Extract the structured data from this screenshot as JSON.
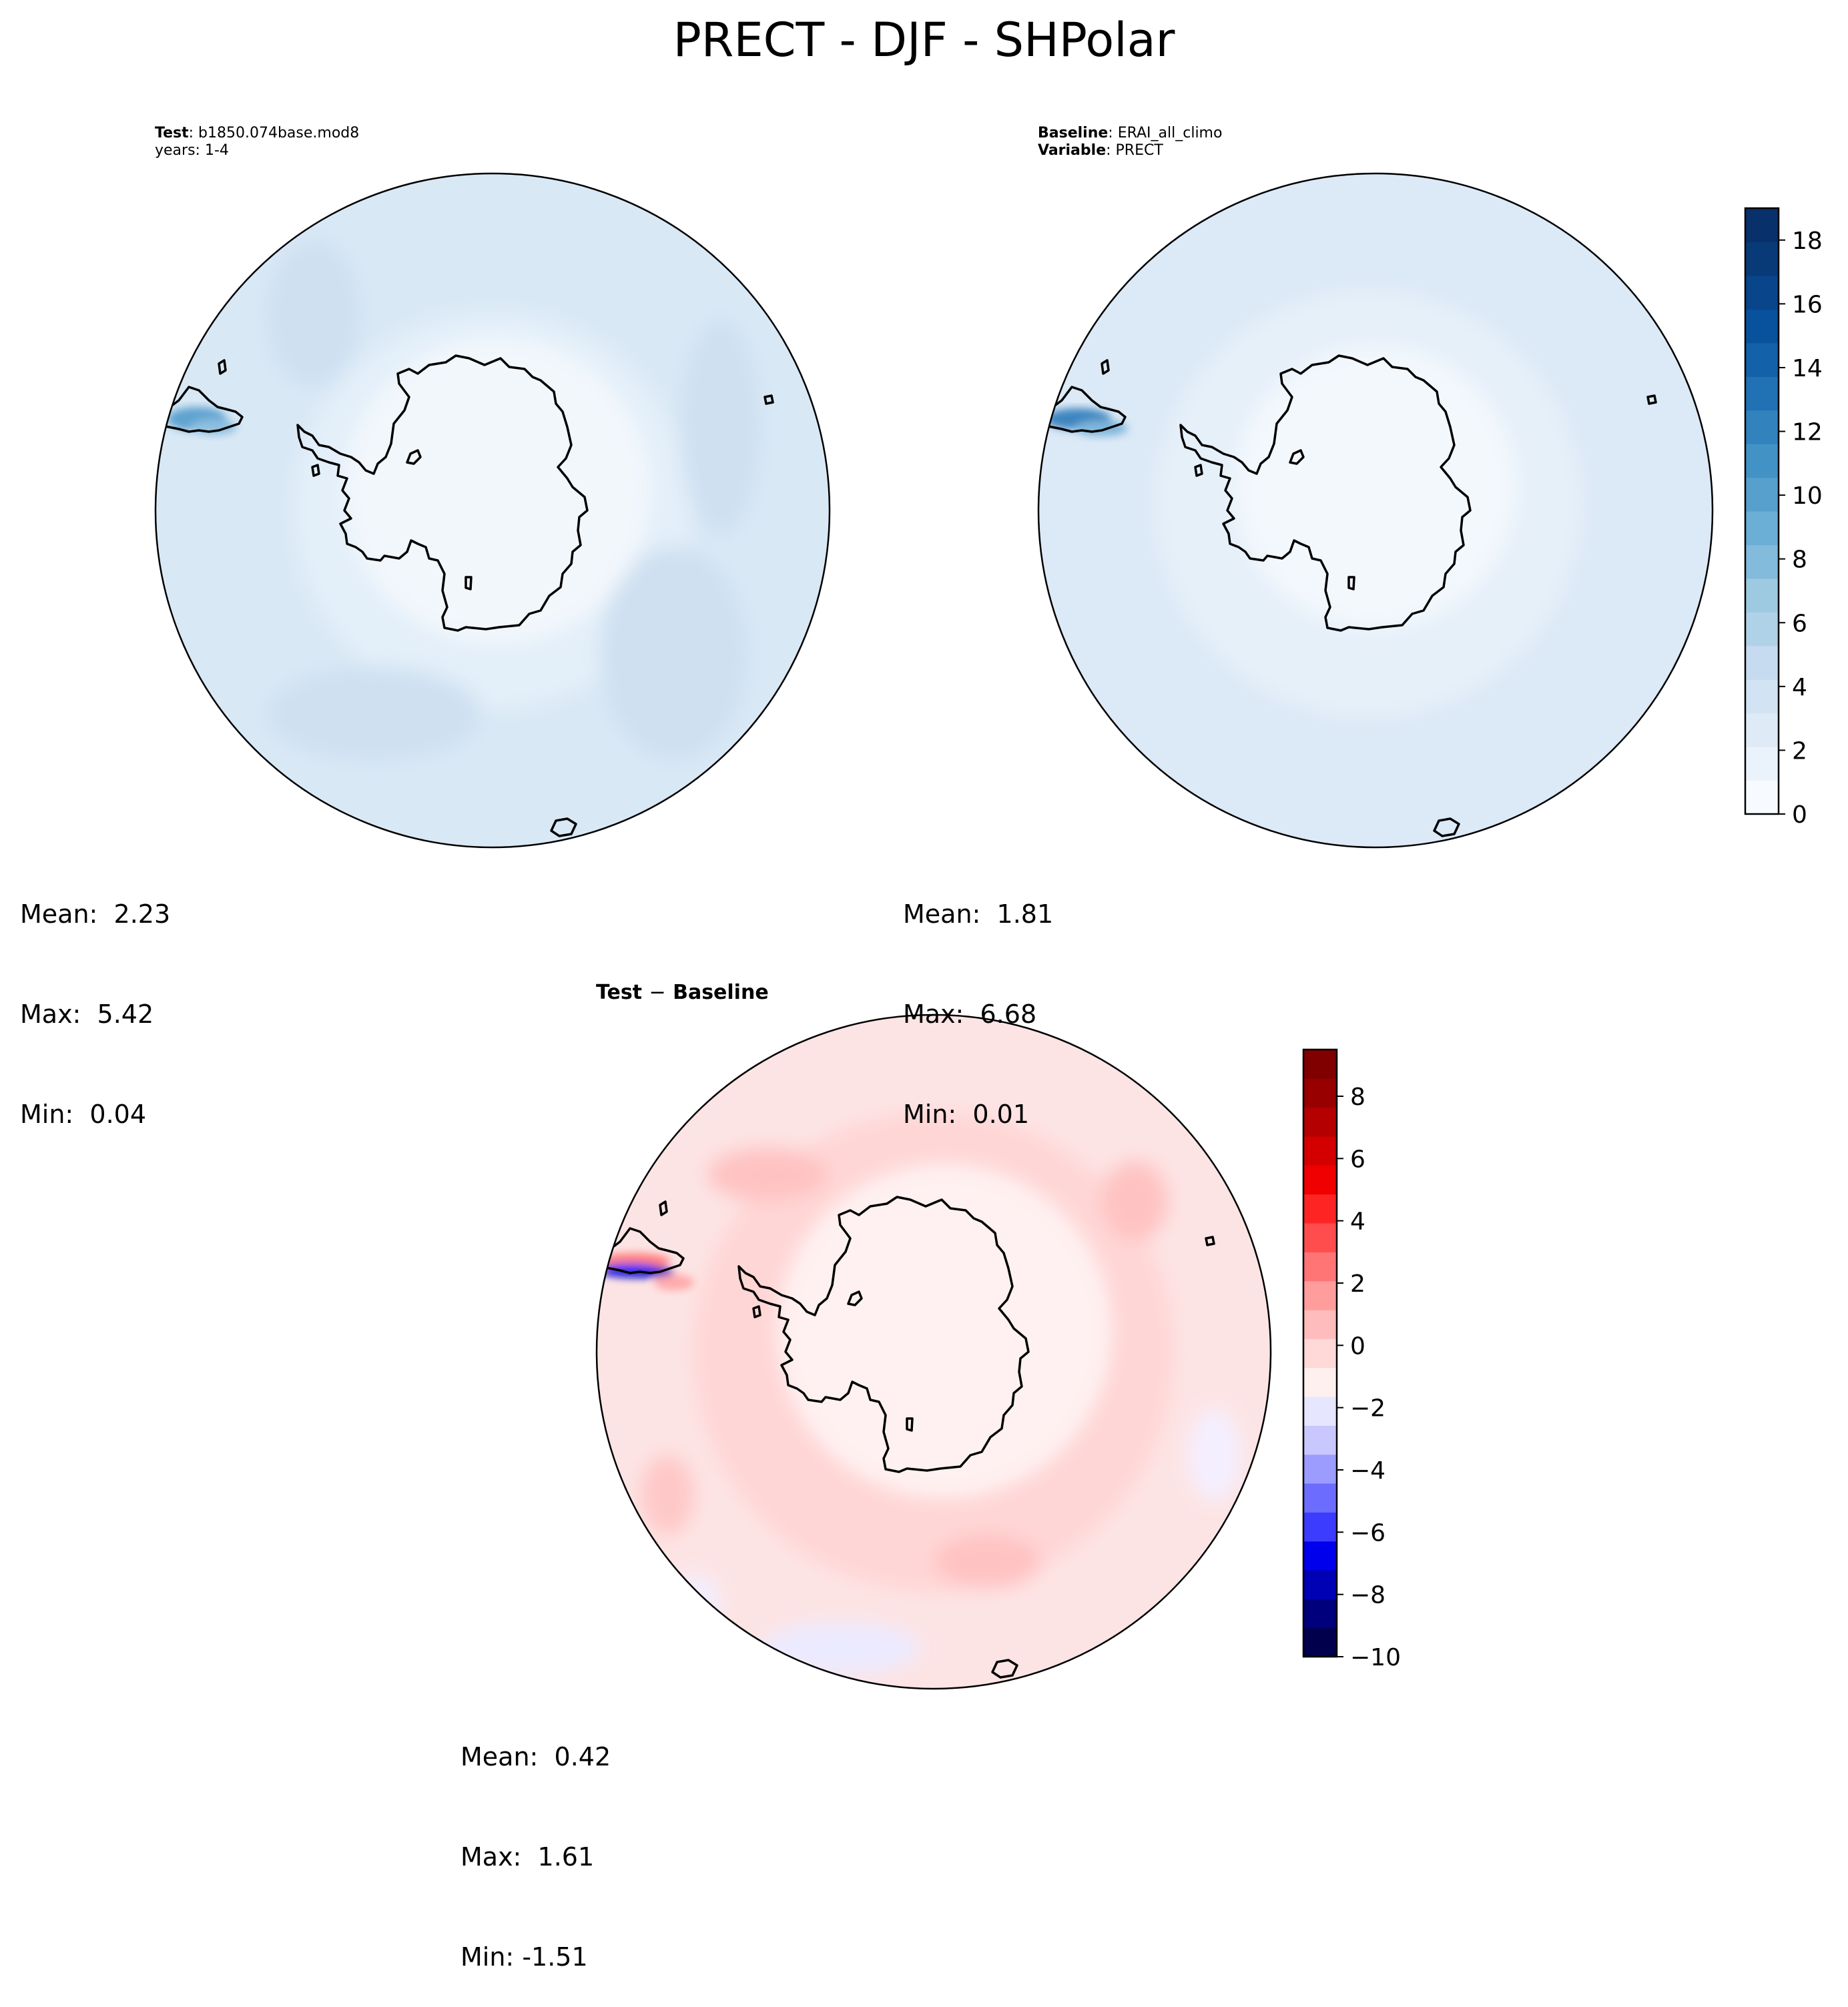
{
  "figure": {
    "title": "PRECT - DJF - SHPolar"
  },
  "colors": {
    "blues": [
      "#f7fbff",
      "#eaf3fb",
      "#deebf7",
      "#d2e3f3",
      "#c6dbef",
      "#b0d2e8",
      "#9ecae1",
      "#82bbdb",
      "#6baed6",
      "#57a0ce",
      "#4292c6",
      "#3182bd",
      "#2171b5",
      "#1361a9",
      "#08519c",
      "#08458a",
      "#083a78",
      "#08306b"
    ],
    "bwr": [
      "#00004c",
      "#00007c",
      "#0000b4",
      "#0000ec",
      "#3c3cff",
      "#6c6cff",
      "#9c9cff",
      "#c8c8ff",
      "#e6e6ff",
      "#fff0f0",
      "#ffd8d8",
      "#ffbcbc",
      "#ff9c9c",
      "#ff7474",
      "#ff4c4c",
      "#ff2424",
      "#f00000",
      "#d40000",
      "#b40000",
      "#980000",
      "#800000"
    ],
    "coastline": "#000000"
  },
  "chart_data": [
    {
      "type": "heatmap",
      "panel": "test",
      "header": [
        {
          "label": "Test",
          "value": ": b1850.074base.mod8"
        },
        {
          "label": "",
          "value": "years: 1-4"
        }
      ],
      "stats": {
        "mean_label": "Mean:",
        "mean": "2.23",
        "max_label": "Max:",
        "max": "5.42",
        "min_label": "Min:",
        "min": "0.04"
      },
      "projection": "south-polar-stereographic",
      "field_range": [
        0,
        19
      ]
    },
    {
      "type": "heatmap",
      "panel": "baseline",
      "header": [
        {
          "label": "Baseline",
          "value": ": ERAI_all_climo"
        },
        {
          "label": "Variable",
          "value": ": PRECT"
        }
      ],
      "stats": {
        "mean_label": "Mean:",
        "mean": "1.81",
        "max_label": "Max:",
        "max": "6.68",
        "min_label": "Min:",
        "min": "0.01"
      },
      "projection": "south-polar-stereographic",
      "field_range": [
        0,
        19
      ],
      "colorbar": {
        "min": 0,
        "max": 19,
        "ticks": [
          "0",
          "2",
          "4",
          "6",
          "8",
          "10",
          "12",
          "14",
          "16",
          "18"
        ],
        "tick_values": [
          0,
          2,
          4,
          6,
          8,
          10,
          12,
          14,
          16,
          18
        ],
        "cmap": "Blues"
      }
    },
    {
      "type": "heatmap",
      "panel": "difference",
      "title_left": "Test",
      "title_sep": "−",
      "title_right": "Baseline",
      "stats": {
        "mean_label": "Mean:",
        "mean": "0.42",
        "max_label": "Max:",
        "max": "1.61",
        "min_label": "Min:",
        "min": "-1.51"
      },
      "projection": "south-polar-stereographic",
      "field_range": [
        -10,
        9.5
      ],
      "colorbar": {
        "min": -10,
        "max": 9.5,
        "ticks": [
          "−10",
          "−8",
          "−6",
          "−4",
          "−2",
          "0",
          "2",
          "4",
          "6",
          "8"
        ],
        "tick_values": [
          -10,
          -8,
          -6,
          -4,
          -2,
          0,
          2,
          4,
          6,
          8
        ],
        "cmap": "bwr"
      }
    }
  ]
}
